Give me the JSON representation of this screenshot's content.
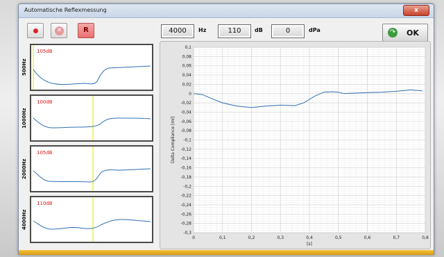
{
  "window": {
    "title": "Automatische Reflexmessung",
    "close_glyph": "x"
  },
  "toolbar": {
    "record_icon": "record-dot-icon",
    "stop_glyph": "✕",
    "r_label": "R",
    "frequency_value": "4000",
    "frequency_unit": "Hz",
    "level_value": "110",
    "level_unit": "dB",
    "pressure_value": "0",
    "pressure_unit": "dPa",
    "ok_label": "OK",
    "ok_arrow": "↷"
  },
  "mini_plots": [
    {
      "label": "500Hz",
      "level": "105dB"
    },
    {
      "label": "1000Hz",
      "level": "100dB"
    },
    {
      "label": "2000Hz",
      "level": "105dB"
    },
    {
      "label": "4000Hz",
      "level": "110dB"
    }
  ],
  "chart_data": {
    "type": "line",
    "title": "",
    "xlabel": "[s]",
    "ylabel": "Delta Compliance [ml]",
    "xlim": [
      0,
      0.8
    ],
    "ylim": [
      -0.3,
      0.1
    ],
    "x_ticks": [
      "0",
      "0,1",
      "0,2",
      "0,3",
      "0,4",
      "0,5",
      "0,6",
      "0,7",
      "0,8"
    ],
    "y_ticks": [
      "0,1",
      "0,08",
      "0,06",
      "0,04",
      "0,02",
      "0",
      "-0,02",
      "-0,04",
      "-0,06",
      "-0,08",
      "-0,1",
      "-0,12",
      "-0,14",
      "-0,16",
      "-0,18",
      "-0,2",
      "-0,22",
      "-0,24",
      "-0,26",
      "-0,28",
      "-0,3"
    ],
    "grid": true,
    "line_color": "#2f6fb0",
    "series": [
      {
        "x": [
          0,
          0.03,
          0.06,
          0.1,
          0.15,
          0.2,
          0.25,
          0.3,
          0.35,
          0.38,
          0.42,
          0.45,
          0.48,
          0.5,
          0.52,
          0.55,
          0.6,
          0.65,
          0.7,
          0.75,
          0.79
        ],
        "y": [
          0.0,
          -0.002,
          -0.01,
          -0.02,
          -0.027,
          -0.03,
          -0.027,
          -0.025,
          -0.026,
          -0.02,
          -0.005,
          0.003,
          0.004,
          0.003,
          0.0,
          0.001,
          0.002,
          0.003,
          0.005,
          0.008,
          0.006
        ]
      }
    ]
  }
}
